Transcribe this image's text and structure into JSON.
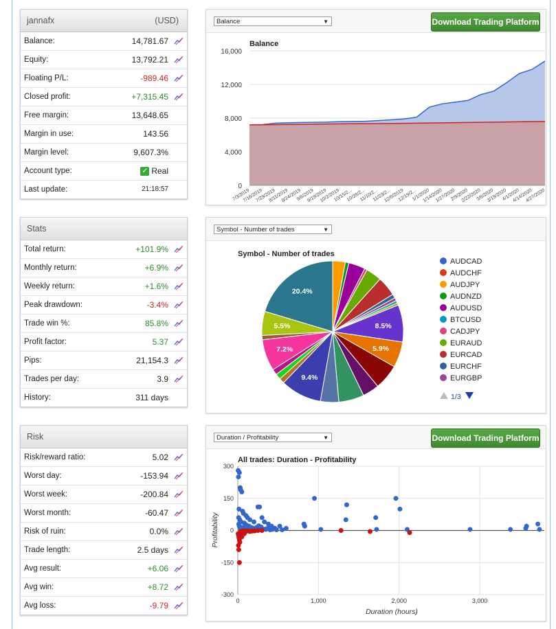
{
  "account": {
    "name": "jannafx",
    "currency": "(USD)",
    "rows": [
      {
        "label": "Balance:",
        "value": "14,781.67",
        "tone": ""
      },
      {
        "label": "Equity:",
        "value": "13,792.21",
        "tone": ""
      },
      {
        "label": "Floating P/L:",
        "value": "-989.46",
        "tone": "neg"
      },
      {
        "label": "Closed profit:",
        "value": "+7,315.45",
        "tone": "pos"
      },
      {
        "label": "Free margin:",
        "value": "13,648.65",
        "tone": ""
      },
      {
        "label": "Margin in use:",
        "value": "143.56",
        "tone": ""
      },
      {
        "label": "Margin level:",
        "value": "9,607.3%",
        "tone": ""
      },
      {
        "label": "Account type:",
        "value": "Real",
        "tone": ""
      },
      {
        "label": "Last update:",
        "value": "21:18:57",
        "tone": ""
      }
    ]
  },
  "stats": {
    "title": "Stats",
    "rows": [
      {
        "label": "Total return:",
        "value": "+101.9%",
        "tone": "pos"
      },
      {
        "label": "Monthly return:",
        "value": "+6.9%",
        "tone": "pos"
      },
      {
        "label": "Weekly return:",
        "value": "+1.6%",
        "tone": "pos"
      },
      {
        "label": "Peak drawdown:",
        "value": "-3.4%",
        "tone": "neg"
      },
      {
        "label": "Trade win %:",
        "value": "85.8%",
        "tone": "pos"
      },
      {
        "label": "Profit factor:",
        "value": "5.37",
        "tone": "pos"
      },
      {
        "label": "Pips:",
        "value": "21,154.3",
        "tone": ""
      },
      {
        "label": "Trades per day:",
        "value": "3.9",
        "tone": ""
      },
      {
        "label": "History:",
        "value": "311 days",
        "tone": ""
      }
    ]
  },
  "risk": {
    "title": "Risk",
    "rows": [
      {
        "label": "Risk/reward ratio:",
        "value": "5.02",
        "tone": ""
      },
      {
        "label": "Worst day:",
        "value": "-153.94",
        "tone": ""
      },
      {
        "label": "Worst week:",
        "value": "-200.84",
        "tone": ""
      },
      {
        "label": "Worst month:",
        "value": "-60.47",
        "tone": ""
      },
      {
        "label": "Risk of ruin:",
        "value": "0.0%",
        "tone": ""
      },
      {
        "label": "Trade length:",
        "value": "2.5 days",
        "tone": ""
      },
      {
        "label": "Avg result:",
        "value": "+6.06",
        "tone": "pos"
      },
      {
        "label": "Avg win:",
        "value": "+8.72",
        "tone": "pos"
      },
      {
        "label": "Avg loss:",
        "value": "-9.79",
        "tone": "neg"
      }
    ]
  },
  "ui": {
    "download_button": "Download Trading Platform",
    "balance_select": "Balance",
    "symbol_select": "Symbol - Number of trades",
    "duration_select": "Duration / Profitability",
    "pager": "1/3"
  },
  "chart_data": [
    {
      "type": "area",
      "title": "Balance",
      "ylim": [
        0,
        16000
      ],
      "yticks": [
        "0",
        "4,000",
        "8,000",
        "12,000",
        "16,000"
      ],
      "x": [
        "7/3/2019",
        "7/16/2019",
        "7/29/2019",
        "8/11/2019",
        "8/24/2019",
        "9/6/2019",
        "9/19/2019",
        "10/2/2019",
        "10/15/2...",
        "10/28/2...",
        "11/10/2...",
        "11/23/2...",
        "12/6/2019",
        "12/19/2...",
        "1/1/2020",
        "1/14/2020",
        "1/27/2020",
        "2/9/2020",
        "2/22/2020",
        "3/6/2020",
        "3/19/2020",
        "4/1/2020",
        "4/14/2020",
        "4/27/2020"
      ],
      "series": [
        {
          "values": [
            7200,
            7220,
            7400,
            7450,
            7480,
            7500,
            7520,
            7580,
            7600,
            7620,
            7700,
            7800,
            7900,
            8100,
            9300,
            9700,
            9900,
            10100,
            10800,
            11200,
            12200,
            13300,
            13800,
            14781
          ]
        },
        {
          "values": [
            7200,
            7200,
            7220,
            7240,
            7260,
            7280,
            7300,
            7320,
            7330,
            7340,
            7350,
            7360,
            7380,
            7400,
            7420,
            7440,
            7460,
            7480,
            7500,
            7520,
            7540,
            7560,
            7580,
            7600
          ]
        }
      ],
      "grid": true
    },
    {
      "type": "pie",
      "title": "Symbol - Number of trades",
      "legend_position": "right",
      "legend": [
        {
          "label": "AUDCAD",
          "color": "#3366cc"
        },
        {
          "label": "AUDCHF",
          "color": "#dc3912"
        },
        {
          "label": "AUDJPY",
          "color": "#ff9900"
        },
        {
          "label": "AUDNZD",
          "color": "#109618"
        },
        {
          "label": "AUDUSD",
          "color": "#990099"
        },
        {
          "label": "BTCUSD",
          "color": "#0099c6"
        },
        {
          "label": "CADJPY",
          "color": "#dd4477"
        },
        {
          "label": "EURAUD",
          "color": "#66aa00"
        },
        {
          "label": "EURCAD",
          "color": "#b82e2e"
        },
        {
          "label": "EURCHF",
          "color": "#316395"
        },
        {
          "label": "EURGBP",
          "color": "#994499"
        }
      ],
      "slices": [
        {
          "value": 2.9,
          "color": "#ff9900",
          "label": ""
        },
        {
          "value": 0.8,
          "color": "#109618",
          "label": ""
        },
        {
          "value": 3.8,
          "color": "#990099",
          "label": ""
        },
        {
          "value": 0.6,
          "color": "#dd4477",
          "label": ""
        },
        {
          "value": 3.6,
          "color": "#66aa00",
          "label": ""
        },
        {
          "value": 4.5,
          "color": "#b82e2e",
          "label": ""
        },
        {
          "value": 0.9,
          "color": "#316395",
          "label": ""
        },
        {
          "value": 0.7,
          "color": "#994499",
          "label": ""
        },
        {
          "value": 0.6,
          "color": "#22aa99",
          "label": ""
        },
        {
          "value": 0.5,
          "color": "#aaaa11",
          "label": ""
        },
        {
          "value": 8.5,
          "color": "#6633cc",
          "label": "8.5%"
        },
        {
          "value": 5.9,
          "color": "#e67300",
          "label": "5.9%"
        },
        {
          "value": 5.8,
          "color": "#8b0707",
          "label": ""
        },
        {
          "value": 3.8,
          "color": "#651067",
          "label": ""
        },
        {
          "value": 5.8,
          "color": "#329262",
          "label": ""
        },
        {
          "value": 4.2,
          "color": "#5574a6",
          "label": ""
        },
        {
          "value": 9.4,
          "color": "#3b3eac",
          "label": "9.4%"
        },
        {
          "value": 1.2,
          "color": "#b77322",
          "label": ""
        },
        {
          "value": 1.3,
          "color": "#16d620",
          "label": ""
        },
        {
          "value": 1.3,
          "color": "#b91383",
          "label": ""
        },
        {
          "value": 7.2,
          "color": "#f4359e",
          "label": "7.2%"
        },
        {
          "value": 1.0,
          "color": "#9c5935",
          "label": ""
        },
        {
          "value": 5.5,
          "color": "#a9c413",
          "label": "5.5%"
        },
        {
          "value": 20.4,
          "color": "#2a778d",
          "label": "20.4%"
        }
      ]
    },
    {
      "type": "scatter",
      "title": "All trades: Duration - Profitability",
      "xlabel": "Duration (hours)",
      "ylabel": "Profitability",
      "xlim": [
        0,
        3800
      ],
      "ylim": [
        -300,
        300
      ],
      "xticks": [
        "0",
        "1,000",
        "2,000",
        "3,000"
      ],
      "yticks": [
        "-300",
        "-150",
        "0",
        "150",
        "300"
      ],
      "series": [
        {
          "color": "#3366cc",
          "points": [
            [
              5,
              280
            ],
            [
              20,
              270
            ],
            [
              8,
              250
            ],
            [
              30,
              200
            ],
            [
              35,
              190
            ],
            [
              50,
              180
            ],
            [
              15,
              100
            ],
            [
              60,
              90
            ],
            [
              70,
              80
            ],
            [
              100,
              70
            ],
            [
              120,
              60
            ],
            [
              150,
              50
            ],
            [
              200,
              40
            ],
            [
              250,
              110
            ],
            [
              270,
              110
            ],
            [
              300,
              60
            ],
            [
              330,
              40
            ],
            [
              380,
              30
            ],
            [
              420,
              20
            ],
            [
              460,
              10
            ],
            [
              520,
              20
            ],
            [
              600,
              10
            ],
            [
              10,
              60
            ],
            [
              25,
              50
            ],
            [
              40,
              40
            ],
            [
              80,
              35
            ],
            [
              90,
              30
            ],
            [
              110,
              25
            ],
            [
              140,
              20
            ],
            [
              160,
              15
            ],
            [
              180,
              12
            ],
            [
              220,
              10
            ],
            [
              240,
              8
            ],
            [
              280,
              5
            ],
            [
              350,
              5
            ],
            [
              400,
              3
            ],
            [
              30,
              10
            ],
            [
              60,
              8
            ],
            [
              90,
              5
            ],
            [
              130,
              3
            ],
            [
              170,
              2
            ],
            [
              210,
              2
            ],
            [
              12,
              30
            ],
            [
              18,
              20
            ],
            [
              45,
              15
            ],
            [
              55,
              5
            ],
            [
              75,
              12
            ],
            [
              95,
              18
            ],
            [
              105,
              8
            ],
            [
              125,
              6
            ],
            [
              145,
              4
            ],
            [
              165,
              9
            ],
            [
              190,
              3
            ],
            [
              230,
              14
            ],
            [
              260,
              22
            ],
            [
              290,
              16
            ],
            [
              320,
              6
            ],
            [
              360,
              9
            ],
            [
              390,
              14
            ],
            [
              430,
              5
            ],
            [
              480,
              3
            ],
            [
              550,
              3
            ],
            [
              820,
              30
            ],
            [
              830,
              20
            ],
            [
              950,
              150
            ],
            [
              1030,
              5
            ],
            [
              1350,
              120
            ],
            [
              1340,
              50
            ],
            [
              1710,
              60
            ],
            [
              1720,
              5
            ],
            [
              1960,
              150
            ],
            [
              2010,
              100
            ],
            [
              2100,
              5
            ],
            [
              2880,
              5
            ],
            [
              3380,
              5
            ],
            [
              3570,
              10
            ],
            [
              3580,
              20
            ],
            [
              3720,
              30
            ],
            [
              3740,
              5
            ]
          ]
        },
        {
          "color": "#cc1111",
          "points": [
            [
              5,
              -15
            ],
            [
              10,
              -25
            ],
            [
              15,
              -35
            ],
            [
              20,
              -45
            ],
            [
              25,
              -55
            ],
            [
              8,
              -70
            ],
            [
              12,
              -90
            ],
            [
              30,
              -20
            ],
            [
              40,
              -10
            ],
            [
              50,
              -30
            ],
            [
              60,
              -20
            ],
            [
              70,
              -5
            ],
            [
              80,
              -15
            ],
            [
              90,
              -8
            ],
            [
              100,
              -3
            ],
            [
              120,
              -2
            ],
            [
              150,
              -5
            ],
            [
              180,
              -3
            ],
            [
              210,
              -2
            ],
            [
              250,
              0
            ],
            [
              300,
              0
            ],
            [
              20,
              -150
            ],
            [
              35,
              -5
            ],
            [
              45,
              -12
            ],
            [
              55,
              -8
            ],
            [
              65,
              -3
            ],
            [
              75,
              -2
            ],
            [
              1280,
              0
            ],
            [
              1640,
              -5
            ],
            [
              2130,
              -10
            ]
          ]
        }
      ],
      "grid": true
    }
  ]
}
